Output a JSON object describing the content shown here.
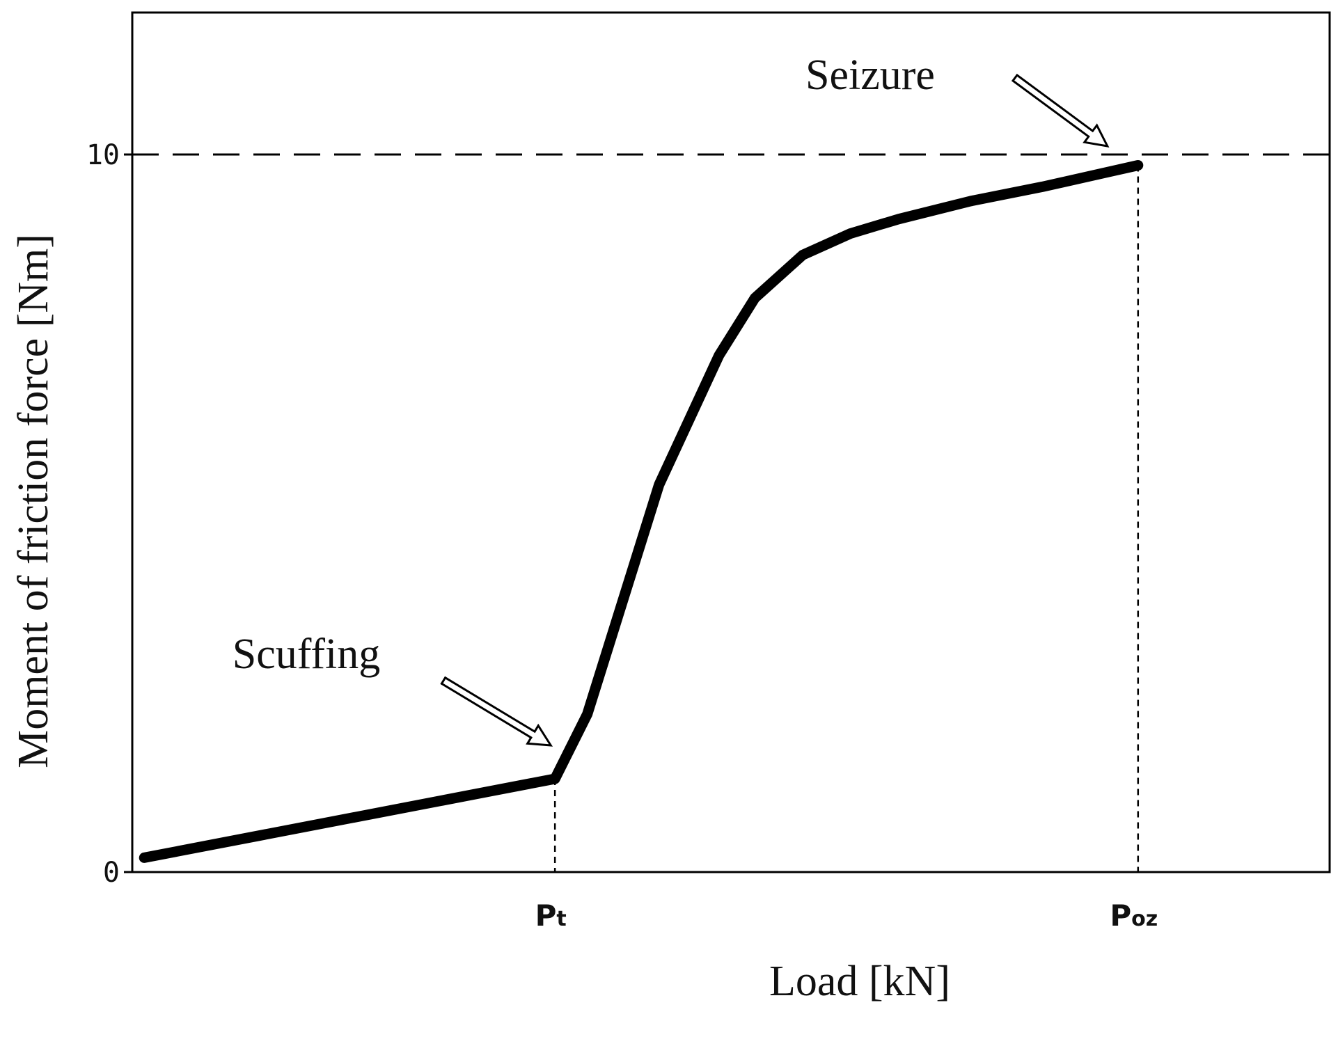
{
  "chart_data": {
    "type": "line",
    "title": "",
    "xlabel": "Load [kN]",
    "ylabel": "Moment of friction force [Nm]",
    "y_ticks": [
      "0",
      "10"
    ],
    "ylim": [
      0,
      12
    ],
    "x_ticks": [
      {
        "main": "P",
        "sub": "t",
        "x": 0.353
      },
      {
        "main": "P",
        "sub": "oz",
        "x": 0.84
      }
    ],
    "xlim": [
      0,
      1
    ],
    "grid": false,
    "series": [
      {
        "x": [
          0.01,
          0.353,
          0.38,
          0.44,
          0.49,
          0.52,
          0.56,
          0.6,
          0.64,
          0.7,
          0.76,
          0.84
        ],
        "y": [
          0.2,
          1.3,
          2.2,
          5.4,
          7.2,
          8.0,
          8.6,
          8.9,
          9.1,
          9.35,
          9.55,
          9.85
        ]
      }
    ],
    "reference_line": {
      "y": 10,
      "style": "dashed"
    },
    "annotations": [
      {
        "text": "Scuffing",
        "x": 0.353,
        "y": 1.3
      },
      {
        "text": "Seizure",
        "x": 0.84,
        "y": 10
      }
    ]
  }
}
